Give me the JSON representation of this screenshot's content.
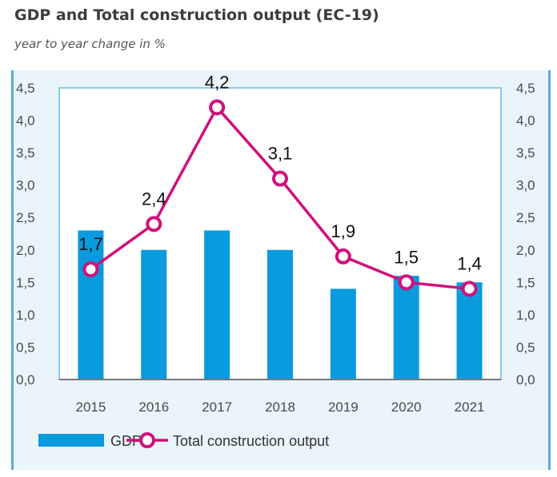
{
  "chart_data": {
    "type": "bar+line",
    "title": "GDP and Total construction output (EC-19)",
    "subtitle": "year to year change in %",
    "categories": [
      "2015",
      "2016",
      "2017",
      "2018",
      "2019",
      "2020",
      "2021"
    ],
    "series": [
      {
        "name": "GDP",
        "type": "bar",
        "color": "#0a9ade",
        "values": [
          2.3,
          2.0,
          2.3,
          2.0,
          1.4,
          1.6,
          1.5
        ]
      },
      {
        "name": "Total construction output",
        "type": "line",
        "color": "#d0107a",
        "values": [
          1.7,
          2.4,
          4.2,
          3.1,
          1.9,
          1.5,
          1.4
        ],
        "data_labels": [
          "1,7",
          "2,4",
          "4,2",
          "3,1",
          "1,9",
          "1,5",
          "1,4"
        ]
      }
    ],
    "yticks": [
      "0,0",
      "0,5",
      "1,0",
      "1,5",
      "2,0",
      "2,5",
      "3,0",
      "3,5",
      "4,0",
      "4,5"
    ],
    "ylim": [
      0,
      4.5
    ],
    "secondary_yaxis": true,
    "legend": "bottom",
    "grid": false
  }
}
